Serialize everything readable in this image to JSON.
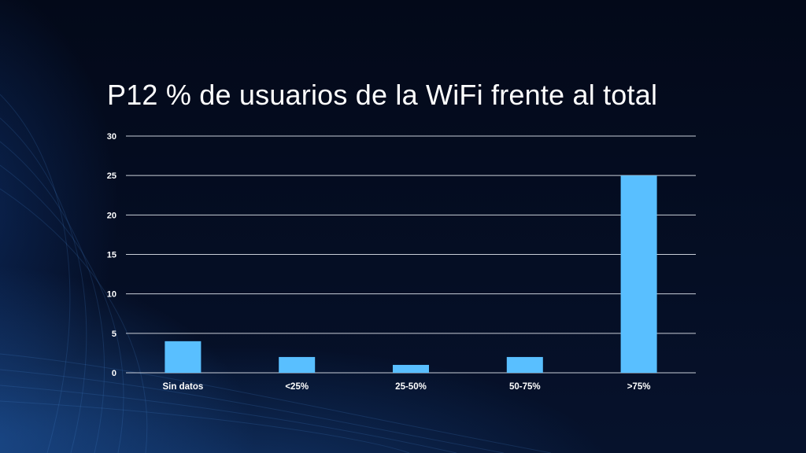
{
  "slide": {
    "title": "P12 % de usuarios de la WiFi frente al total"
  },
  "colors": {
    "bar": "#59bfff",
    "grid": "#c9ced8",
    "background": "#040b1c"
  },
  "chart_data": {
    "type": "bar",
    "title": "P12 % de usuarios de la WiFi frente al total",
    "categories": [
      "Sin datos",
      "<25%",
      "25-50%",
      "50-75%",
      ">75%"
    ],
    "values": [
      4,
      2,
      1,
      2,
      25
    ],
    "ylim": [
      0,
      30
    ],
    "yticks": [
      0,
      5,
      10,
      15,
      20,
      25,
      30
    ],
    "grid": true,
    "legend": "none"
  }
}
